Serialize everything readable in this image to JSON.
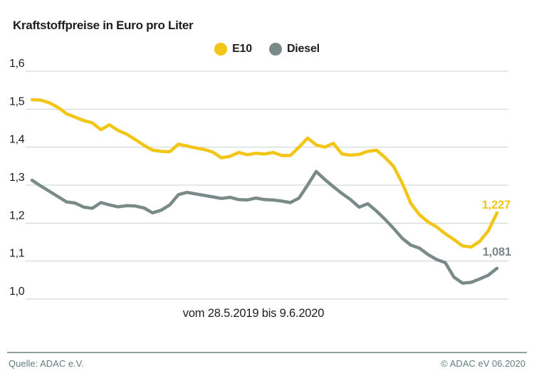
{
  "header": {
    "title": "Kraftstoffpreise in Euro pro Liter"
  },
  "chart_data": {
    "type": "line",
    "title": "Kraftstoffpreise in Euro pro Liter",
    "xlabel": "vom 28.5.2019 bis 9.6.2020",
    "ylabel": "",
    "ylim": [
      1.0,
      1.6
    ],
    "grid": true,
    "legend_position": "top-center",
    "yticks": [
      {
        "value": 1.6,
        "label": "1,6"
      },
      {
        "value": 1.5,
        "label": "1,5"
      },
      {
        "value": 1.4,
        "label": "1,4"
      },
      {
        "value": 1.3,
        "label": "1,3"
      },
      {
        "value": 1.2,
        "label": "1,2"
      },
      {
        "value": 1.1,
        "label": "1,1"
      },
      {
        "value": 1.0,
        "label": "1,0"
      }
    ],
    "series": [
      {
        "name": "E10",
        "color": "#F3C517",
        "end_label": "1,227",
        "values": [
          1.525,
          1.524,
          1.517,
          1.505,
          1.488,
          1.479,
          1.47,
          1.464,
          1.446,
          1.459,
          1.444,
          1.434,
          1.42,
          1.405,
          1.392,
          1.389,
          1.388,
          1.408,
          1.403,
          1.398,
          1.394,
          1.387,
          1.372,
          1.376,
          1.386,
          1.38,
          1.384,
          1.382,
          1.386,
          1.378,
          1.378,
          1.4,
          1.424,
          1.406,
          1.4,
          1.41,
          1.382,
          1.379,
          1.381,
          1.389,
          1.392,
          1.373,
          1.349,
          1.305,
          1.252,
          1.222,
          1.203,
          1.19,
          1.172,
          1.157,
          1.14,
          1.137,
          1.152,
          1.18,
          1.227
        ]
      },
      {
        "name": "Diesel",
        "color": "#7A8A88",
        "end_label": "1,081",
        "values": [
          1.313,
          1.298,
          1.284,
          1.27,
          1.256,
          1.253,
          1.242,
          1.239,
          1.254,
          1.248,
          1.243,
          1.246,
          1.245,
          1.24,
          1.227,
          1.234,
          1.248,
          1.275,
          1.281,
          1.277,
          1.273,
          1.269,
          1.265,
          1.268,
          1.262,
          1.261,
          1.266,
          1.262,
          1.261,
          1.258,
          1.254,
          1.266,
          1.3,
          1.336,
          1.315,
          1.296,
          1.278,
          1.262,
          1.242,
          1.251,
          1.232,
          1.21,
          1.186,
          1.16,
          1.142,
          1.134,
          1.117,
          1.104,
          1.096,
          1.058,
          1.042,
          1.044,
          1.053,
          1.063,
          1.081
        ]
      }
    ]
  },
  "footer": {
    "source": "Quelle: ADAC e.V.",
    "copyright": "© ADAC eV 06.2020"
  },
  "colors": {
    "e10": "#F3C517",
    "diesel": "#7A8A88",
    "text": "#1D1D1B",
    "grid": "#CCD1D1",
    "divider": "#8FA0A0",
    "footer_text": "#627D7C",
    "background": "#FFFFFF"
  }
}
